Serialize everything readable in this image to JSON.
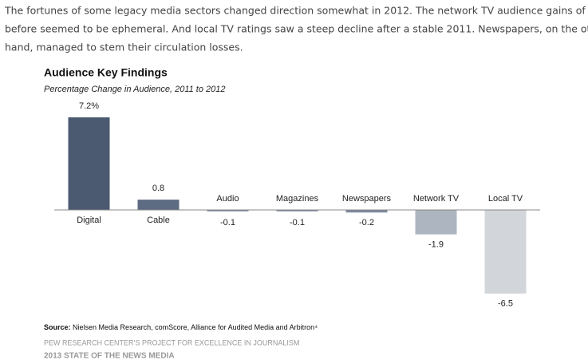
{
  "intro": [
    "The fortunes of some legacy media sectors changed direction somewhat in 2012. The network TV audience gains of a year",
    "before seemed to be ephemeral. And local TV ratings saw a steep decline after a stable 2011. Newspapers, on the other",
    "hand, managed to stem their circulation losses."
  ],
  "chart_data": {
    "type": "bar",
    "title": "Audience Key Findings",
    "subtitle": "Percentage Change in Audience, 2011 to 2012",
    "categories": [
      "Digital",
      "Cable",
      "Audio",
      "Magazines",
      "Newspapers",
      "Network TV",
      "Local TV"
    ],
    "values": [
      7.2,
      0.8,
      -0.1,
      -0.1,
      -0.2,
      -1.9,
      -6.5
    ],
    "value_labels": [
      "7.2%",
      "0.8",
      "-0.1",
      "-0.1",
      "-0.2",
      "-1.9",
      "-6.5"
    ],
    "colors": [
      "#4b5a71",
      "#5d6b83",
      "#6f7d93",
      "#6f7d93",
      "#7d899d",
      "#adb5c0",
      "#d2d5da"
    ]
  },
  "source_label": "Source:",
  "source": "Nielsen Media Research, comScore, Alliance for Audited Media and Arbitron⁴",
  "footer": [
    "PEW RESEARCH CENTER’S PROJECT FOR EXCELLENCE IN JOURNALISM",
    "2013 STATE OF THE NEWS MEDIA"
  ]
}
